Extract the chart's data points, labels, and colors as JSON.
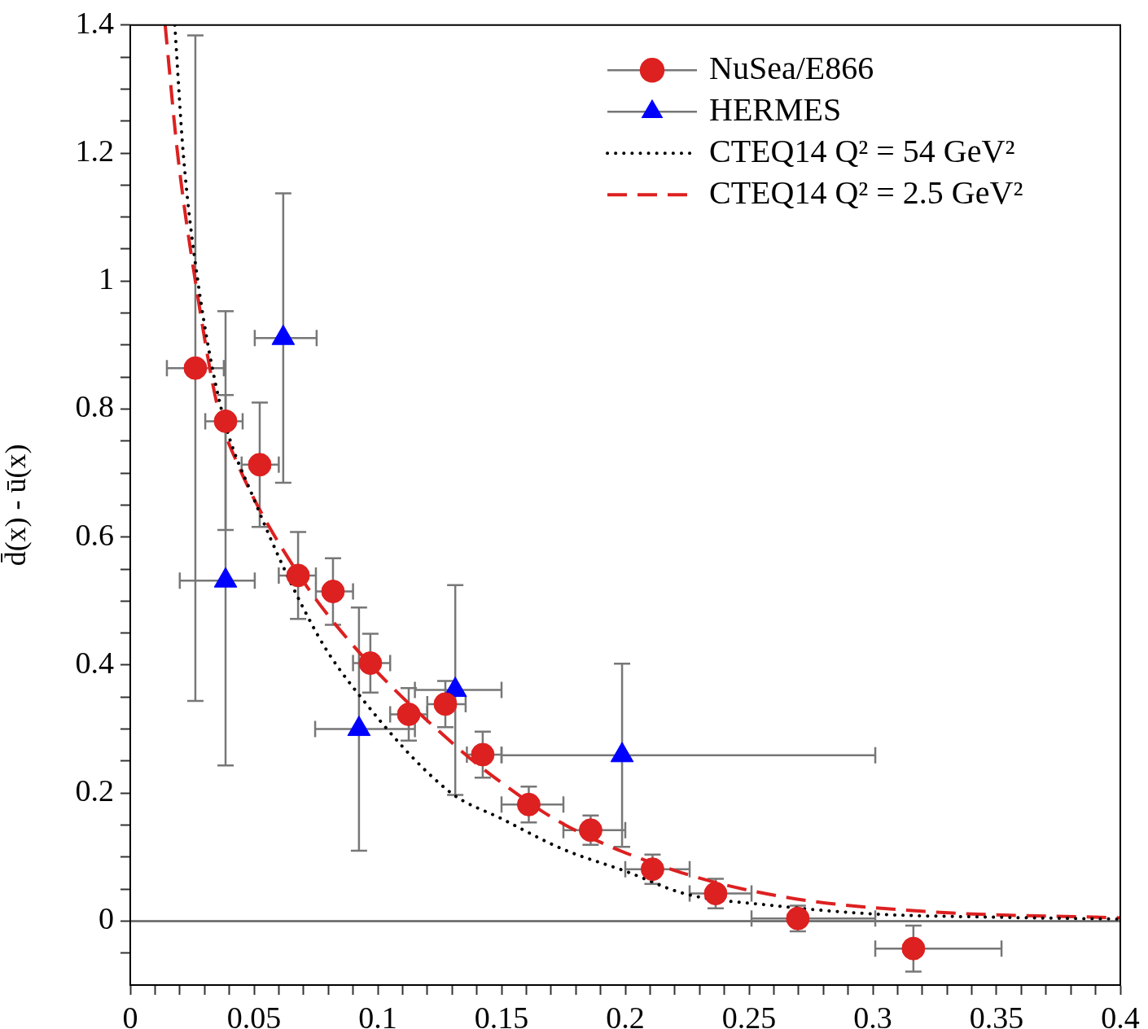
{
  "chart_data": {
    "type": "scatter",
    "ylabel": "d̄(x) - ū(x)",
    "legend": "top right",
    "xlim": [
      0,
      0.4
    ],
    "ylim": [
      -0.1,
      1.4
    ],
    "xticks": [
      0,
      {
        "value": 0.01,
        "label": null
      },
      {
        "value": 0.02,
        "label": null
      },
      {
        "value": 0.03,
        "label": null
      },
      {
        "value": 0.04,
        "label": null
      },
      0.05,
      {
        "value": 0.06,
        "label": null
      },
      {
        "value": 0.07,
        "label": null
      },
      {
        "value": 0.08,
        "label": null
      },
      {
        "value": 0.09,
        "label": null
      },
      0.1,
      {
        "value": 0.11,
        "label": null
      },
      {
        "value": 0.12,
        "label": null
      },
      {
        "value": 0.13,
        "label": null
      },
      {
        "value": 0.14,
        "label": null
      },
      0.15,
      {
        "value": 0.16,
        "label": null
      },
      {
        "value": 0.17,
        "label": null
      },
      {
        "value": 0.18,
        "label": null
      },
      {
        "value": 0.19,
        "label": null
      },
      0.2,
      {
        "value": 0.21,
        "label": null
      },
      {
        "value": 0.22,
        "label": null
      },
      {
        "value": 0.23,
        "label": null
      },
      {
        "value": 0.24,
        "label": null
      },
      0.25,
      {
        "value": 0.26,
        "label": null
      },
      {
        "value": 0.27,
        "label": null
      },
      {
        "value": 0.28,
        "label": null
      },
      {
        "value": 0.29,
        "label": null
      },
      0.3,
      {
        "value": 0.31,
        "label": null
      },
      {
        "value": 0.32,
        "label": null
      },
      {
        "value": 0.33,
        "label": null
      },
      {
        "value": 0.34,
        "label": null
      },
      0.35,
      {
        "value": 0.36,
        "label": null
      },
      {
        "value": 0.37,
        "label": null
      },
      {
        "value": 0.38,
        "label": null
      },
      {
        "value": 0.39,
        "label": null
      },
      0.4
    ],
    "yticks": [
      {
        "value": -0.05,
        "label": null
      },
      0,
      {
        "value": 0.05,
        "label": null
      },
      {
        "value": 0.1,
        "label": null
      },
      {
        "value": 0.15,
        "label": null
      },
      0.2,
      {
        "value": 0.25,
        "label": null
      },
      {
        "value": 0.3,
        "label": null
      },
      {
        "value": 0.35,
        "label": null
      },
      0.4,
      {
        "value": 0.45,
        "label": null
      },
      {
        "value": 0.5,
        "label": null
      },
      {
        "value": 0.55,
        "label": null
      },
      0.6,
      {
        "value": 0.65,
        "label": null
      },
      {
        "value": 0.7,
        "label": null
      },
      {
        "value": 0.75,
        "label": null
      },
      0.8,
      {
        "value": 0.85,
        "label": null
      },
      {
        "value": 0.9,
        "label": null
      },
      {
        "value": 0.95,
        "label": null
      },
      1,
      {
        "value": 1.05,
        "label": null
      },
      {
        "value": 1.1,
        "label": null
      },
      {
        "value": 1.15,
        "label": null
      },
      1.2,
      {
        "value": 1.25,
        "label": null
      },
      {
        "value": 1.3,
        "label": null
      },
      {
        "value": 1.35,
        "label": null
      },
      1.4
    ],
    "ref_lines": [
      {
        "axis": "y",
        "value": 0,
        "color": "#606060"
      }
    ],
    "series": [
      {
        "name": "NuSea/E866",
        "marker": "circle",
        "color": "#dd2020",
        "x": [
          0.0263,
          0.0385,
          0.0523,
          0.0678,
          0.0819,
          0.097,
          0.1125,
          0.1273,
          0.1424,
          0.161,
          0.186,
          0.211,
          0.2365,
          0.2697,
          0.3164
        ],
        "values": [
          0.864,
          0.781,
          0.713,
          0.54,
          0.515,
          0.403,
          0.323,
          0.339,
          0.26,
          0.182,
          0.142,
          0.081,
          0.043,
          0.004,
          -0.043
        ],
        "errors": [
          0.52,
          [
            0.611,
            0.822
          ],
          0.097,
          0.068,
          0.052,
          0.046,
          0.041,
          0.036,
          0.036,
          0.028,
          0.023,
          0.023,
          0.023,
          0.02,
          0.036
        ],
        "xerrors": [
          [
            0.0148,
            0.0378
          ],
          [
            0.0303,
            0.0454
          ],
          [
            0.045,
            0.06
          ],
          [
            0.06,
            0.075
          ],
          [
            0.075,
            0.09
          ],
          [
            0.09,
            0.105
          ],
          [
            0.105,
            0.12
          ],
          [
            0.12,
            0.1355
          ],
          [
            0.136,
            0.15
          ],
          [
            0.15,
            0.175
          ],
          [
            0.175,
            0.2
          ],
          [
            0.2,
            0.226
          ],
          [
            0.226,
            0.251
          ],
          [
            0.251,
            0.301
          ],
          [
            0.301,
            0.352
          ]
        ]
      },
      {
        "name": "HERMES",
        "marker": "triangle",
        "color": "#0000ff",
        "x": [
          0.0385,
          0.0618,
          0.0924,
          0.1313,
          0.1987
        ],
        "values": [
          0.532,
          0.911,
          0.3,
          0.361,
          0.259
        ],
        "errors": [
          [
            0.243,
            0.953
          ],
          0.226,
          0.19,
          0.164,
          0.143
        ],
        "xerrors": [
          [
            0.02,
            0.0503
          ],
          [
            0.0503,
            0.0753
          ],
          [
            0.0747,
            0.115
          ],
          [
            0.115,
            0.15
          ],
          [
            0.15,
            0.301
          ]
        ]
      },
      {
        "name": "CTEQ14 Q² = 54 GeV²",
        "type": "line",
        "marker": "none",
        "line_style": "dotted",
        "color": "#000000",
        "x": [
          0.018,
          0.0214,
          0.0273,
          0.0368,
          0.05,
          0.0757,
          0.0921,
          0.129,
          0.15,
          0.175,
          0.2,
          0.2247,
          0.2578,
          0.3007,
          0.35,
          0.4
        ],
        "values": [
          1.4,
          1.2,
          1.0,
          0.8,
          0.659,
          0.447,
          0.355,
          0.202,
          0.16,
          0.112,
          0.078,
          0.042,
          0.025,
          0.011,
          0.006,
          0.003
        ]
      },
      {
        "name": "CTEQ14 Q² = 2.5 GeV²",
        "type": "line",
        "marker": "none",
        "line_style": "dashed",
        "color": "#dd2020",
        "x": [
          0.0141,
          0.0191,
          0.0263,
          0.0355,
          0.0434,
          0.0668,
          0.092,
          0.1316,
          0.149,
          0.1753,
          0.22,
          0.2635,
          0.321,
          0.4
        ],
        "values": [
          1.4,
          1.2,
          1.0,
          0.8,
          0.714,
          0.549,
          0.422,
          0.273,
          0.219,
          0.151,
          0.079,
          0.038,
          0.015,
          0.005
        ]
      }
    ]
  }
}
